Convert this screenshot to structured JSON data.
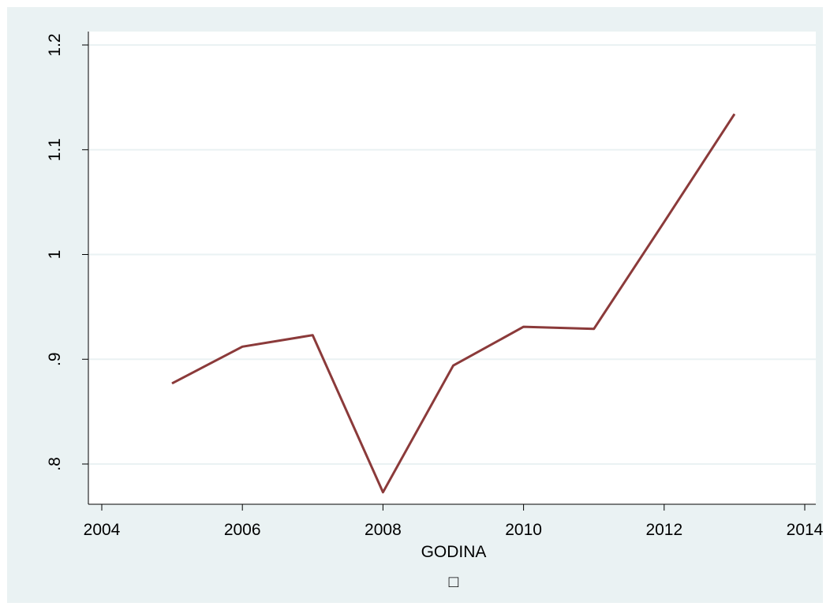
{
  "chart_data": {
    "type": "line",
    "title": "",
    "xlabel": "GODINA",
    "ylabel": "",
    "legend_placeholder": "□",
    "x_ticks": [
      "2004",
      "2006",
      "2008",
      "2010",
      "2012",
      "2014"
    ],
    "y_ticks": [
      ".8",
      ".9",
      "1",
      "1.1",
      "1.2"
    ],
    "xlim": [
      2004,
      2014
    ],
    "ylim": [
      0.8,
      1.2
    ],
    "grid": "horizontal",
    "colors": {
      "background": "#eaf2f3",
      "plot": "#ffffff",
      "grid": "#eaf2f3",
      "line": "#8b3a3a"
    },
    "series": [
      {
        "x": [
          2005,
          2006,
          2007,
          2008,
          2009,
          2010,
          2011,
          2012,
          2013
        ],
        "y": [
          0.877,
          0.912,
          0.923,
          0.773,
          0.894,
          0.931,
          0.929,
          1.031,
          1.134
        ]
      }
    ]
  }
}
